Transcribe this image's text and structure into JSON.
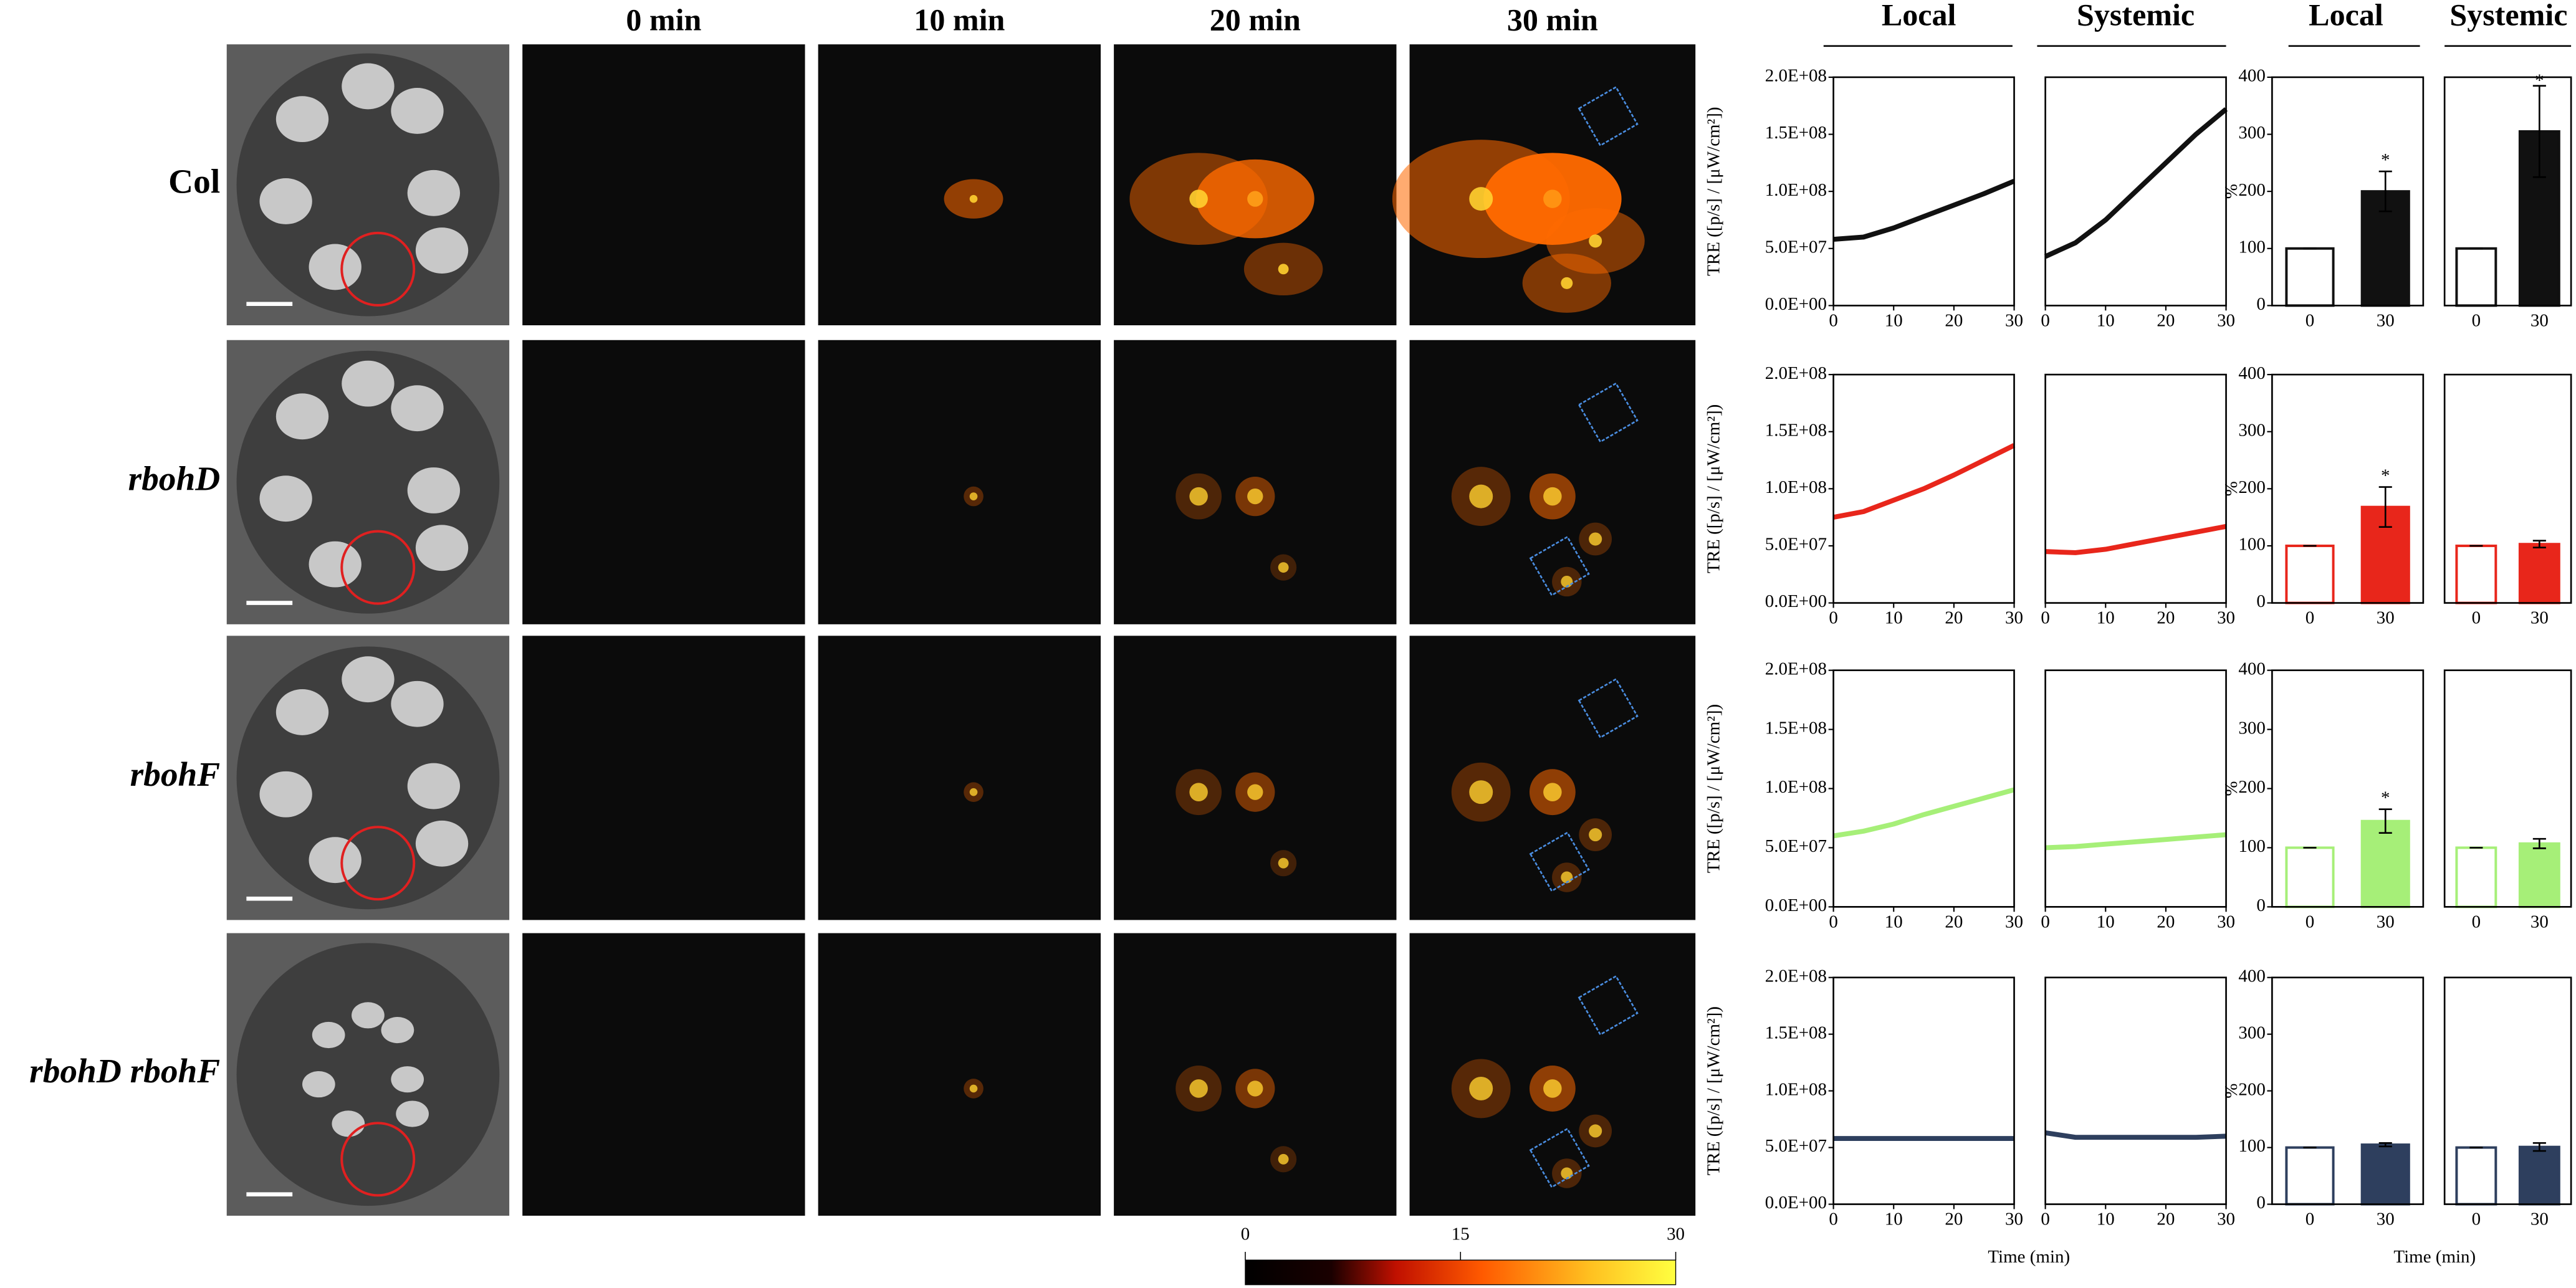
{
  "panels": {
    "time_headers": [
      "0 min",
      "10 min",
      "20 min",
      "30 min"
    ],
    "rows": [
      "Col",
      "rbohD",
      "rbohF",
      "rbohD rbohF"
    ],
    "line_xlabel": "Time (min)",
    "bar_xlabel": "Time (min)",
    "colorbar": {
      "lim": [
        0,
        30
      ],
      "ticks": [
        0,
        15,
        30
      ]
    }
  },
  "chart_data": [
    {
      "type": "line",
      "title": "Local",
      "x": [
        0,
        5,
        10,
        15,
        20,
        25,
        30
      ],
      "series": [
        {
          "color": "#111111",
          "values": [
            58000000,
            60000000,
            68000000,
            78000000,
            88000000,
            98000000,
            109000000
          ]
        }
      ],
      "xlim": [
        0,
        30
      ],
      "ylim": [
        0,
        200000000
      ],
      "xticks": [
        0,
        10,
        20,
        30
      ],
      "yticks": [
        {
          "value": 0,
          "label": "0.0E+00"
        },
        {
          "value": 50000000,
          "label": "5.0E+07"
        },
        {
          "value": 100000000,
          "label": "1.0E+08"
        },
        {
          "value": 150000000,
          "label": "1.5E+08"
        },
        {
          "value": 200000000,
          "label": "2.0E+08"
        }
      ],
      "ylabel": "TRE ([p/s] / [μW/cm²])"
    },
    {
      "type": "line",
      "title": "Systemic",
      "x": [
        0,
        5,
        10,
        15,
        20,
        25,
        30
      ],
      "series": [
        {
          "color": "#111111",
          "values": [
            43000000,
            55000000,
            75000000,
            100000000,
            125000000,
            150000000,
            172000000
          ]
        }
      ],
      "xlim": [
        0,
        30
      ],
      "ylim": [
        0,
        200000000
      ],
      "xticks": [
        0,
        10,
        20,
        30
      ]
    },
    {
      "type": "bar",
      "title": "Local",
      "categories": [
        "0",
        "30"
      ],
      "values": [
        100,
        200
      ],
      "errors": [
        0,
        35
      ],
      "color": "#111111",
      "annotation": "*",
      "ylim": [
        0,
        400
      ],
      "yticks": [
        0,
        100,
        200,
        300,
        400
      ],
      "ylabel": "%"
    },
    {
      "type": "bar",
      "title": "Systemic",
      "categories": [
        "0",
        "30"
      ],
      "values": [
        100,
        305
      ],
      "errors": [
        0,
        80
      ],
      "color": "#111111",
      "annotation": "*",
      "ylim": [
        0,
        400
      ]
    },
    {
      "type": "line",
      "x": [
        0,
        5,
        10,
        15,
        20,
        25,
        30
      ],
      "series": [
        {
          "color": "#e8261b",
          "values": [
            75000000,
            80000000,
            90000000,
            100000000,
            112000000,
            125000000,
            138000000
          ]
        }
      ],
      "xlim": [
        0,
        30
      ],
      "ylim": [
        0,
        200000000
      ],
      "xticks": [
        0,
        10,
        20,
        30
      ],
      "yticks": [
        {
          "value": 0,
          "label": "0.0E+00"
        },
        {
          "value": 50000000,
          "label": "5.0E+07"
        },
        {
          "value": 100000000,
          "label": "1.0E+08"
        },
        {
          "value": 150000000,
          "label": "1.5E+08"
        },
        {
          "value": 200000000,
          "label": "2.0E+08"
        }
      ],
      "ylabel": "TRE ([p/s] / [μW/cm²])"
    },
    {
      "type": "line",
      "x": [
        0,
        5,
        10,
        15,
        20,
        25,
        30
      ],
      "series": [
        {
          "color": "#e8261b",
          "values": [
            45000000,
            44000000,
            47000000,
            52000000,
            57000000,
            62000000,
            67000000
          ]
        }
      ],
      "xlim": [
        0,
        30
      ],
      "ylim": [
        0,
        200000000
      ],
      "xticks": [
        0,
        10,
        20,
        30
      ]
    },
    {
      "type": "bar",
      "categories": [
        "0",
        "30"
      ],
      "values": [
        100,
        168
      ],
      "errors": [
        0,
        35
      ],
      "color": "#e8261b",
      "annotation": "*",
      "ylim": [
        0,
        400
      ],
      "yticks": [
        0,
        100,
        200,
        300,
        400
      ],
      "ylabel": "%"
    },
    {
      "type": "bar",
      "categories": [
        "0",
        "30"
      ],
      "values": [
        100,
        103
      ],
      "errors": [
        0,
        6
      ],
      "color": "#e8261b",
      "ylim": [
        0,
        400
      ]
    },
    {
      "type": "line",
      "x": [
        0,
        5,
        10,
        15,
        20,
        25,
        30
      ],
      "series": [
        {
          "color": "#a6ef78",
          "values": [
            60000000,
            64000000,
            70000000,
            78000000,
            85000000,
            92000000,
            99000000
          ]
        }
      ],
      "xlim": [
        0,
        30
      ],
      "ylim": [
        0,
        200000000
      ],
      "xticks": [
        0,
        10,
        20,
        30
      ],
      "yticks": [
        {
          "value": 0,
          "label": "0.0E+00"
        },
        {
          "value": 50000000,
          "label": "5.0E+07"
        },
        {
          "value": 100000000,
          "label": "1.0E+08"
        },
        {
          "value": 150000000,
          "label": "1.5E+08"
        },
        {
          "value": 200000000,
          "label": "2.0E+08"
        }
      ],
      "ylabel": "TRE ([p/s] / [μW/cm²])"
    },
    {
      "type": "line",
      "x": [
        0,
        5,
        10,
        15,
        20,
        25,
        30
      ],
      "series": [
        {
          "color": "#a6ef78",
          "values": [
            50000000,
            51000000,
            53000000,
            55000000,
            57000000,
            59000000,
            61000000
          ]
        }
      ],
      "xlim": [
        0,
        30
      ],
      "ylim": [
        0,
        200000000
      ],
      "xticks": [
        0,
        10,
        20,
        30
      ]
    },
    {
      "type": "bar",
      "categories": [
        "0",
        "30"
      ],
      "values": [
        100,
        145
      ],
      "errors": [
        0,
        20
      ],
      "color": "#a6ef78",
      "annotation": "*",
      "ylim": [
        0,
        400
      ],
      "yticks": [
        0,
        100,
        200,
        300,
        400
      ],
      "ylabel": "%"
    },
    {
      "type": "bar",
      "categories": [
        "0",
        "30"
      ],
      "values": [
        100,
        107
      ],
      "errors": [
        0,
        8
      ],
      "color": "#a6ef78",
      "ylim": [
        0,
        400
      ]
    },
    {
      "type": "line",
      "x": [
        0,
        5,
        10,
        15,
        20,
        25,
        30
      ],
      "series": [
        {
          "color": "#2e3f5e",
          "values": [
            58000000,
            58000000,
            58000000,
            58000000,
            58000000,
            58000000,
            58000000
          ]
        }
      ],
      "xlim": [
        0,
        30
      ],
      "ylim": [
        0,
        200000000
      ],
      "xticks": [
        0,
        10,
        20,
        30
      ],
      "yticks": [
        {
          "value": 0,
          "label": "0.0E+00"
        },
        {
          "value": 50000000,
          "label": "5.0E+07"
        },
        {
          "value": 100000000,
          "label": "1.0E+08"
        },
        {
          "value": 150000000,
          "label": "1.5E+08"
        },
        {
          "value": 200000000,
          "label": "2.0E+08"
        }
      ],
      "ylabel": "TRE ([p/s] / [μW/cm²])"
    },
    {
      "type": "line",
      "x": [
        0,
        5,
        10,
        15,
        20,
        25,
        30
      ],
      "series": [
        {
          "color": "#2e3f5e",
          "values": [
            63000000,
            59000000,
            59000000,
            59000000,
            59000000,
            59000000,
            60000000
          ]
        }
      ],
      "xlim": [
        0,
        30
      ],
      "ylim": [
        0,
        200000000
      ],
      "xticks": [
        0,
        10,
        20,
        30
      ]
    },
    {
      "type": "bar",
      "categories": [
        "0",
        "30"
      ],
      "values": [
        100,
        105
      ],
      "errors": [
        0,
        3
      ],
      "color": "#2e3f5e",
      "ylim": [
        0,
        400
      ],
      "yticks": [
        0,
        100,
        200,
        300,
        400
      ],
      "ylabel": "%"
    },
    {
      "type": "bar",
      "categories": [
        "0",
        "30"
      ],
      "values": [
        100,
        101
      ],
      "errors": [
        0,
        7
      ],
      "color": "#2e3f5e",
      "ylim": [
        0,
        400
      ]
    }
  ]
}
